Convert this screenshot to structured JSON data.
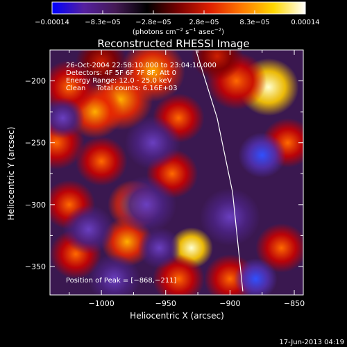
{
  "chart_data": {
    "type": "heatmap",
    "title": "Reconstructed RHESSI Image",
    "xlabel": "Heliocentric X (arcsec)",
    "ylabel": "Heliocentric Y (arcsec)",
    "xlim": [
      -1040,
      -843
    ],
    "ylim": [
      -373,
      -175
    ],
    "x_ticks": [
      {
        "value": -1000,
        "label": "−1000"
      },
      {
        "value": -950,
        "label": "−950"
      },
      {
        "value": -900,
        "label": "−900"
      },
      {
        "value": -850,
        "label": "−850"
      }
    ],
    "y_ticks": [
      {
        "value": -200,
        "label": "−200"
      },
      {
        "value": -250,
        "label": "−250"
      },
      {
        "value": -300,
        "label": "−300"
      },
      {
        "value": -350,
        "label": "−350"
      }
    ],
    "colorbar": {
      "ticks": [
        "−0.00014",
        "−8.3e−05",
        "−2.8e−05",
        "2.8e−05",
        "8.3e−05",
        "0.00014"
      ],
      "unit_prefix": "(photons cm",
      "unit_exp1": "−2",
      "unit_mid": " s",
      "unit_exp2": "−1",
      "unit_mid2": " asec",
      "unit_exp3": "−2",
      "unit_suffix": ")",
      "colors": [
        "#0000ff",
        "#5520a0",
        "#441a55",
        "#000000",
        "#7a0000",
        "#e02000",
        "#ff7a00",
        "#ffd800",
        "#ffffff"
      ]
    },
    "limb": [
      [
        -928,
        -170
      ],
      [
        -910,
        -230
      ],
      [
        -898,
        -290
      ],
      [
        -890,
        -370
      ]
    ],
    "blobs": [
      {
        "x": -870,
        "y": -205,
        "v": 1.0,
        "s": 14
      },
      {
        "x": -895,
        "y": -200,
        "v": 0.55,
        "s": 14
      },
      {
        "x": -960,
        "y": -192,
        "v": 0.65,
        "s": 15
      },
      {
        "x": -985,
        "y": -215,
        "v": 0.6,
        "s": 15
      },
      {
        "x": -1005,
        "y": -225,
        "v": 0.6,
        "s": 13
      },
      {
        "x": -1025,
        "y": -205,
        "v": 0.55,
        "s": 13
      },
      {
        "x": -1035,
        "y": -250,
        "v": 0.55,
        "s": 13
      },
      {
        "x": -1000,
        "y": -265,
        "v": 0.55,
        "s": 12
      },
      {
        "x": -940,
        "y": -230,
        "v": 0.5,
        "s": 12
      },
      {
        "x": -1025,
        "y": -300,
        "v": 0.5,
        "s": 12
      },
      {
        "x": -975,
        "y": -300,
        "v": 0.6,
        "s": 12
      },
      {
        "x": -945,
        "y": -275,
        "v": 0.5,
        "s": 12
      },
      {
        "x": -1020,
        "y": -340,
        "v": 0.55,
        "s": 12
      },
      {
        "x": -980,
        "y": -330,
        "v": 0.75,
        "s": 12
      },
      {
        "x": -930,
        "y": -335,
        "v": 0.85,
        "s": 10
      },
      {
        "x": -940,
        "y": -360,
        "v": 0.5,
        "s": 12
      },
      {
        "x": -900,
        "y": -360,
        "v": 0.45,
        "s": 12
      },
      {
        "x": -860,
        "y": -335,
        "v": 0.45,
        "s": 12
      },
      {
        "x": -855,
        "y": -250,
        "v": 0.45,
        "s": 12
      },
      {
        "x": -910,
        "y": -180,
        "v": 0.4,
        "s": 12
      },
      {
        "x": -1000,
        "y": -185,
        "v": 0.4,
        "s": 12
      },
      {
        "x": -875,
        "y": -260,
        "v": -0.9,
        "s": 11
      },
      {
        "x": -900,
        "y": -310,
        "v": -0.45,
        "s": 14
      },
      {
        "x": -960,
        "y": -250,
        "v": -0.5,
        "s": 13
      },
      {
        "x": -1010,
        "y": -320,
        "v": -0.4,
        "s": 12
      },
      {
        "x": -880,
        "y": -360,
        "v": -0.9,
        "s": 10
      },
      {
        "x": -965,
        "y": -300,
        "v": -0.4,
        "s": 14
      },
      {
        "x": -1030,
        "y": -230,
        "v": -0.3,
        "s": 10
      },
      {
        "x": -990,
        "y": -360,
        "v": -0.35,
        "s": 12
      },
      {
        "x": -955,
        "y": -335,
        "v": -0.3,
        "s": 10
      }
    ],
    "annotations": {
      "time": "26-Oct-2004 22:58:10.000 to 23:04:10.000",
      "detectors": "Detectors: 4F 5F 6F 7F 8F, Att 0",
      "energy": "Energy Range: 12.0 - 25.0 keV",
      "clean": "Clean     Total counts: 6.16E+03",
      "peak": "Position of Peak = [−868,−211]"
    },
    "footer_date": "17-Jun-2013 04:19"
  }
}
